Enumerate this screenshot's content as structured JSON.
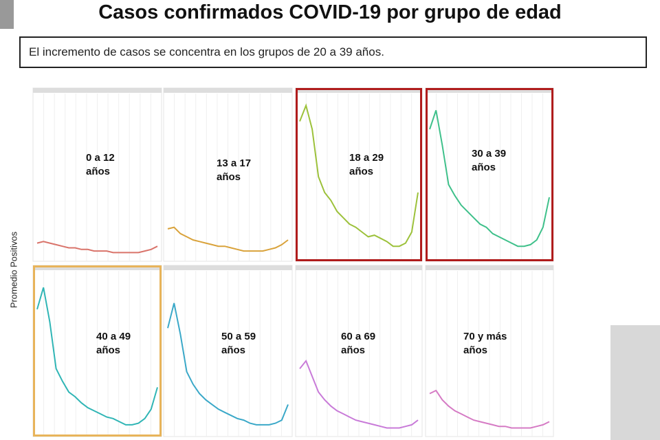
{
  "header": {
    "title": "Casos confirmados COVID-19 por grupo de edad",
    "subtitle": "El incremento de casos se concentra en los grupos de 20 a 39 años."
  },
  "ylabel": "Promedio Positivos",
  "chart_data": [
    {
      "type": "line",
      "title": "0 a 12 años",
      "color": "#d9736a",
      "ylim": [
        0,
        100
      ],
      "values": [
        8,
        9,
        8,
        7,
        6,
        5,
        5,
        4,
        4,
        3,
        3,
        3,
        2,
        2,
        2,
        2,
        2,
        3,
        4,
        6
      ]
    },
    {
      "type": "line",
      "title": "13 a 17 años",
      "color": "#d9a23a",
      "ylim": [
        0,
        100
      ],
      "values": [
        17,
        18,
        14,
        12,
        10,
        9,
        8,
        7,
        6,
        6,
        5,
        4,
        3,
        3,
        3,
        3,
        4,
        5,
        7,
        10
      ]
    },
    {
      "type": "line",
      "title": "18 a 29 años",
      "color": "#9cc13a",
      "ylim": [
        0,
        100
      ],
      "frame_color": "#b01c1c",
      "values": [
        85,
        95,
        80,
        50,
        40,
        35,
        28,
        24,
        20,
        18,
        15,
        12,
        13,
        11,
        9,
        6,
        6,
        8,
        15,
        40
      ]
    },
    {
      "type": "line",
      "title": "30 a 39 años",
      "color": "#3ec08a",
      "ylim": [
        0,
        100
      ],
      "frame_color": "#b01c1c",
      "values": [
        80,
        92,
        70,
        45,
        38,
        32,
        28,
        24,
        20,
        18,
        14,
        12,
        10,
        8,
        6,
        6,
        7,
        10,
        18,
        37
      ]
    },
    {
      "type": "line",
      "title": "40 a 49 años",
      "color": "#2fb5b5",
      "ylim": [
        0,
        100
      ],
      "frame_color": "#e8b45a",
      "values": [
        78,
        92,
        70,
        40,
        32,
        25,
        22,
        18,
        15,
        13,
        11,
        9,
        8,
        6,
        4,
        4,
        5,
        8,
        14,
        28
      ]
    },
    {
      "type": "line",
      "title": "50 a 59 años",
      "color": "#3aa8c8",
      "ylim": [
        0,
        100
      ],
      "values": [
        66,
        82,
        62,
        38,
        30,
        24,
        20,
        17,
        14,
        12,
        10,
        8,
        7,
        5,
        4,
        4,
        4,
        5,
        7,
        17
      ]
    },
    {
      "type": "line",
      "title": "60 a 69 años",
      "color": "#c87ad8",
      "ylim": [
        0,
        100
      ],
      "values": [
        40,
        45,
        35,
        25,
        20,
        16,
        13,
        11,
        9,
        7,
        6,
        5,
        4,
        3,
        2,
        2,
        2,
        3,
        4,
        7
      ]
    },
    {
      "type": "line",
      "title": "70 y más años",
      "color": "#d57ac4",
      "ylim": [
        0,
        100
      ],
      "values": [
        24,
        26,
        20,
        16,
        13,
        11,
        9,
        7,
        6,
        5,
        4,
        3,
        3,
        2,
        2,
        2,
        2,
        3,
        4,
        6
      ]
    }
  ]
}
